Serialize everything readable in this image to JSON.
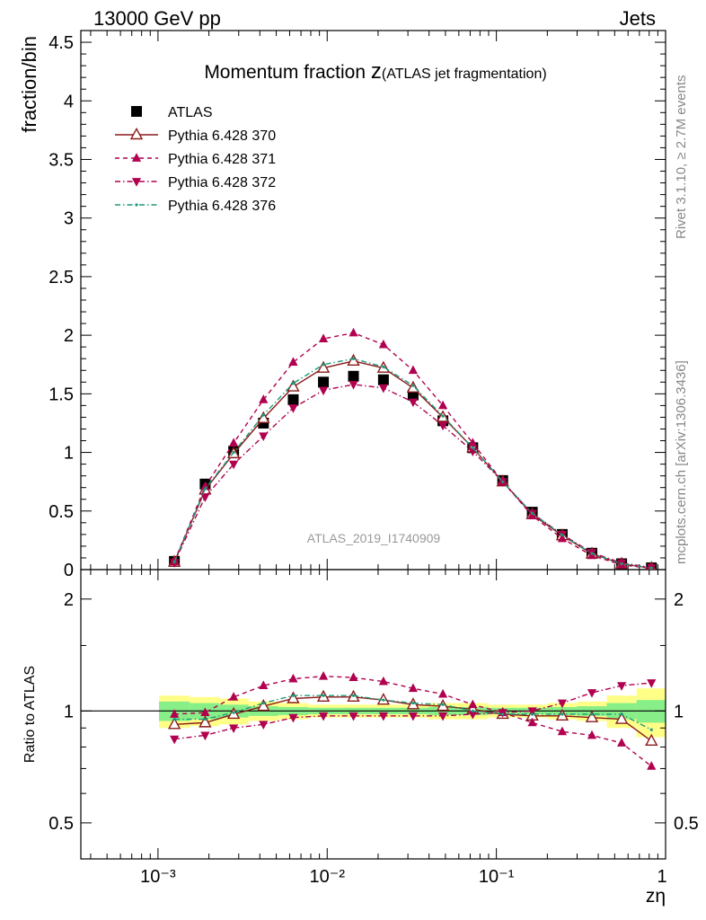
{
  "header": {
    "left": "13000 GeV pp",
    "right": "Jets"
  },
  "side_labels": {
    "rivet": "Rivet 3.1.10, ≥ 2.7M events",
    "mcplots": "mcplots.cern.ch [arXiv:1306.3436]"
  },
  "chart_data": [
    {
      "type": "scatter",
      "panel": "main",
      "title": "Momentum fraction",
      "title_var": "z",
      "title_paren": "(ATLAS jet fragmentation)",
      "ylabel": "fraction/bin",
      "analysis_tag": "ATLAS_2019_I1740909",
      "xscale": "log",
      "xlim": [
        0.00035,
        1.0
      ],
      "ylim": [
        0,
        4.6
      ],
      "yticks": [
        "0",
        "0.5",
        "1",
        "1.5",
        "2",
        "2.5",
        "3",
        "3.5",
        "4",
        "4.5"
      ],
      "x": [
        0.00125,
        0.0019,
        0.0028,
        0.0042,
        0.0063,
        0.0095,
        0.0143,
        0.0215,
        0.0322,
        0.0483,
        0.0725,
        0.109,
        0.163,
        0.245,
        0.367,
        0.55,
        0.825
      ],
      "series": [
        {
          "name": "ATLAS",
          "color": "#000000",
          "marker": "square",
          "values": [
            0.07,
            0.73,
            1.01,
            1.25,
            1.45,
            1.6,
            1.65,
            1.62,
            1.49,
            1.27,
            1.04,
            0.76,
            0.49,
            0.3,
            0.14,
            0.05,
            0.015
          ]
        },
        {
          "name": "Pythia 6.428 370",
          "color": "#8b1a1a",
          "marker": "triangle-open",
          "line": "solid",
          "values": [
            0.065,
            0.68,
            0.99,
            1.29,
            1.56,
            1.72,
            1.78,
            1.72,
            1.55,
            1.3,
            1.04,
            0.75,
            0.47,
            0.29,
            0.135,
            0.048,
            0.0125
          ]
        },
        {
          "name": "Pythia 6.428 371",
          "color": "#b0004f",
          "marker": "triangle-up",
          "line": "dashed",
          "values": [
            0.068,
            0.71,
            1.08,
            1.45,
            1.77,
            1.97,
            2.02,
            1.92,
            1.7,
            1.4,
            1.08,
            0.75,
            0.46,
            0.265,
            0.12,
            0.041,
            0.0105
          ]
        },
        {
          "name": "Pythia 6.428 372",
          "color": "#b0004f",
          "marker": "triangle-down",
          "line": "dashdot",
          "values": [
            0.06,
            0.62,
            0.9,
            1.14,
            1.38,
            1.53,
            1.58,
            1.55,
            1.43,
            1.23,
            1.01,
            0.75,
            0.48,
            0.3,
            0.145,
            0.057,
            0.018
          ]
        },
        {
          "name": "Pythia 6.428 376",
          "color": "#1a9b7b",
          "marker": "dot",
          "line": "dashdot",
          "values": [
            0.066,
            0.69,
            1.0,
            1.32,
            1.59,
            1.75,
            1.8,
            1.73,
            1.57,
            1.31,
            1.04,
            0.75,
            0.48,
            0.295,
            0.138,
            0.05,
            0.0138
          ]
        }
      ]
    },
    {
      "type": "scatter",
      "panel": "ratio",
      "ylabel": "Ratio to ATLAS",
      "xlabel": "zη",
      "xscale": "log",
      "yscale": "log",
      "xlim": [
        0.00035,
        1.0
      ],
      "ylim": [
        0.4,
        2.4
      ],
      "yticks": [
        "0.5",
        "1",
        "2"
      ],
      "xticks": [
        "10⁻³",
        "10⁻²",
        "10⁻¹",
        "1"
      ],
      "x": [
        0.00125,
        0.0019,
        0.0028,
        0.0042,
        0.0063,
        0.0095,
        0.0143,
        0.0215,
        0.0322,
        0.0483,
        0.0725,
        0.109,
        0.163,
        0.245,
        0.367,
        0.55,
        0.825
      ],
      "bands": {
        "yellow": [
          0.1,
          0.09,
          0.08,
          0.06,
          0.05,
          0.04,
          0.04,
          0.04,
          0.04,
          0.05,
          0.05,
          0.04,
          0.04,
          0.05,
          0.06,
          0.1,
          0.15
        ],
        "green": [
          0.06,
          0.05,
          0.04,
          0.03,
          0.025,
          0.02,
          0.02,
          0.02,
          0.02,
          0.025,
          0.025,
          0.02,
          0.02,
          0.025,
          0.03,
          0.05,
          0.07
        ]
      },
      "series": [
        {
          "name": "Pythia 6.428 370",
          "color": "#8b1a1a",
          "marker": "triangle-open",
          "line": "solid",
          "values": [
            0.92,
            0.93,
            0.98,
            1.03,
            1.08,
            1.09,
            1.09,
            1.07,
            1.04,
            1.03,
            1.01,
            0.98,
            0.97,
            0.97,
            0.96,
            0.95,
            0.83
          ]
        },
        {
          "name": "Pythia 6.428 371",
          "color": "#b0004f",
          "marker": "triangle-up",
          "line": "dashed",
          "values": [
            0.98,
            0.99,
            1.09,
            1.17,
            1.22,
            1.24,
            1.23,
            1.2,
            1.15,
            1.11,
            1.04,
            0.99,
            0.93,
            0.88,
            0.86,
            0.82,
            0.71
          ]
        },
        {
          "name": "Pythia 6.428 372",
          "color": "#b0004f",
          "marker": "triangle-down",
          "line": "dashdot",
          "values": [
            0.84,
            0.86,
            0.9,
            0.92,
            0.96,
            0.97,
            0.97,
            0.97,
            0.97,
            0.97,
            0.98,
            0.99,
            1.0,
            1.05,
            1.12,
            1.17,
            1.19
          ]
        },
        {
          "name": "Pythia 6.428 376",
          "color": "#1a9b7b",
          "marker": "dot",
          "line": "dashdot",
          "values": [
            0.95,
            0.95,
            0.99,
            1.05,
            1.1,
            1.1,
            1.1,
            1.07,
            1.05,
            1.04,
            1.0,
            0.98,
            0.98,
            0.98,
            0.98,
            0.98,
            0.89
          ]
        }
      ]
    }
  ]
}
